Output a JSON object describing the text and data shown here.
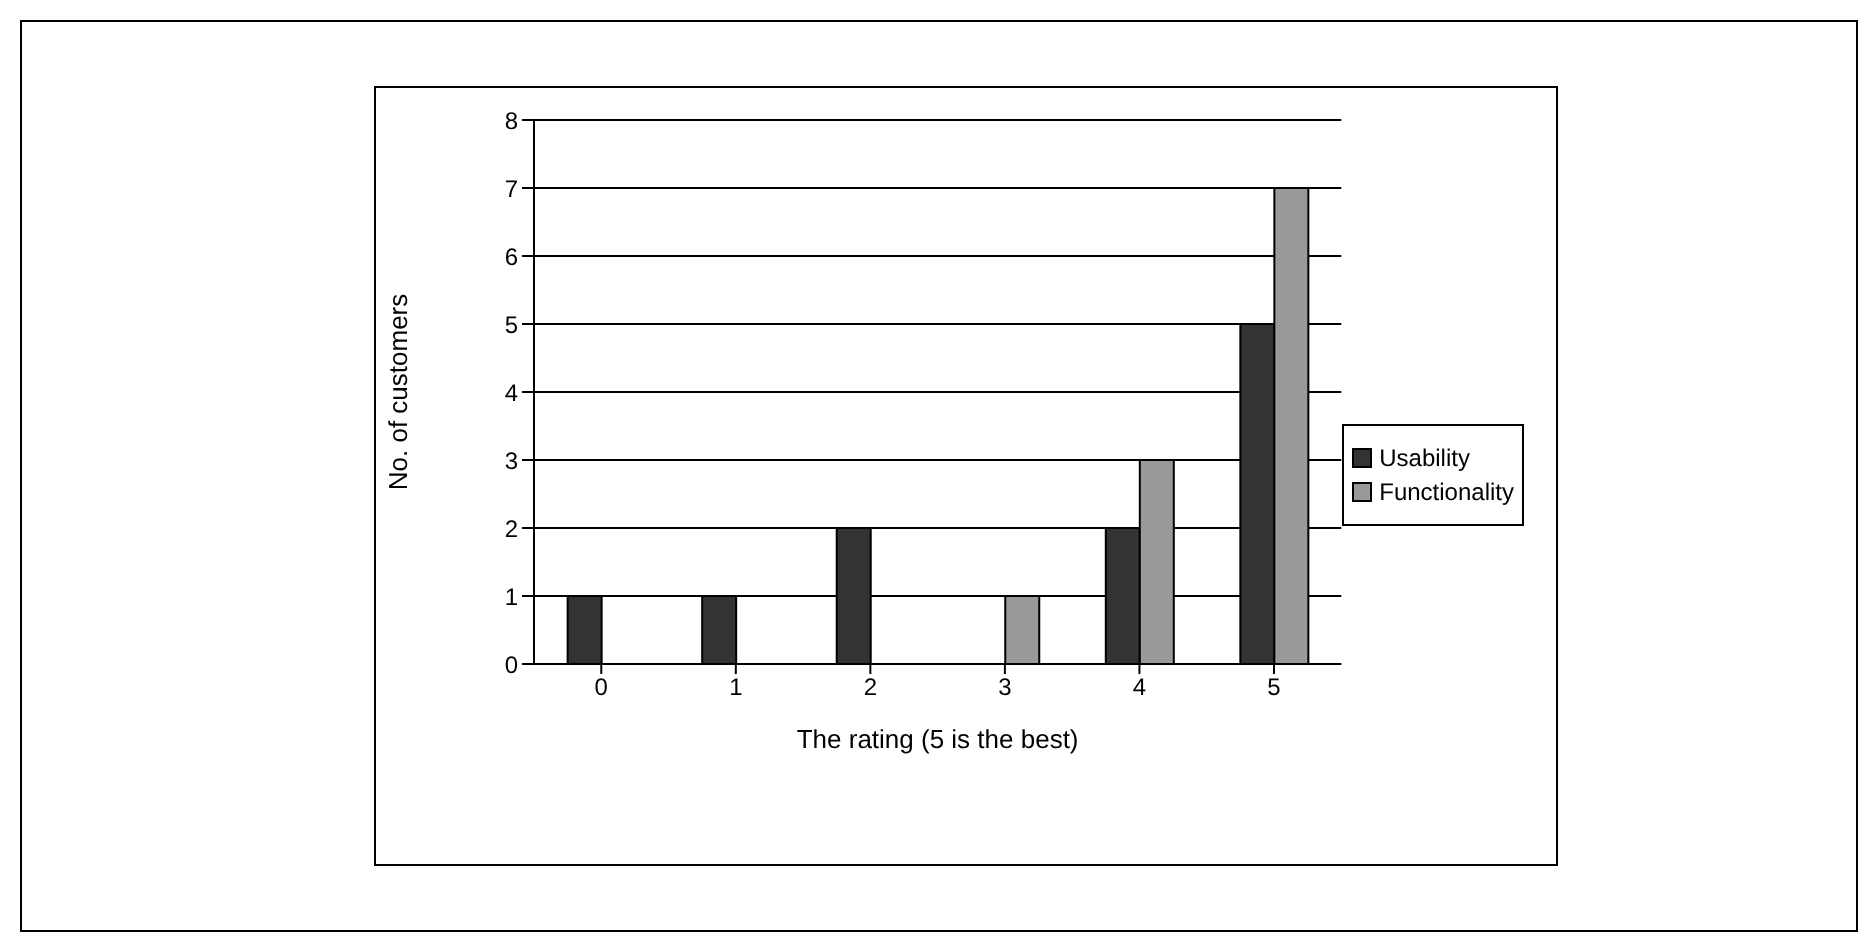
{
  "chart_data": {
    "type": "bar",
    "xlabel": "The rating (5 is the best)",
    "ylabel": "No. of customers",
    "categories": [
      "0",
      "1",
      "2",
      "3",
      "4",
      "5"
    ],
    "series": [
      {
        "name": "Usability",
        "color": "#333333",
        "values": [
          1,
          1,
          2,
          0,
          2,
          5
        ]
      },
      {
        "name": "Functionality",
        "color": "#999999",
        "values": [
          0,
          0,
          0,
          1,
          3,
          7
        ]
      }
    ],
    "ylim": [
      0,
      8
    ],
    "yticks": [
      0,
      1,
      2,
      3,
      4,
      5,
      6,
      7,
      8
    ],
    "grid": "y",
    "legend": "right"
  }
}
